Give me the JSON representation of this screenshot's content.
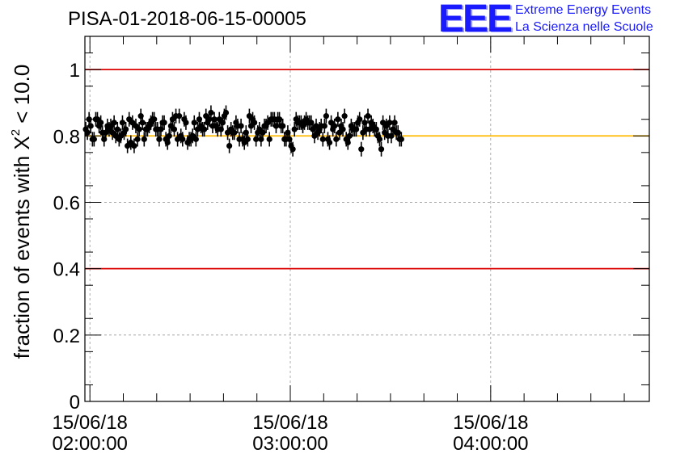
{
  "chart_data": {
    "type": "scatter",
    "title": "PISA-01-2018-06-15-00005",
    "ylabel_prefix": "fraction of events with ",
    "ylabel_chi": "X",
    "ylabel_sup": "2",
    "ylabel_suffix": " < 10.0",
    "xlabel": "",
    "ylim": [
      0,
      1.1
    ],
    "yticks": [
      0,
      0.2,
      0.4,
      0.6,
      0.8,
      1
    ],
    "ytick_labels": [
      "0",
      "0.2",
      "0.4",
      "0.6",
      "0.8",
      "1"
    ],
    "xlim": [
      "15/06/18 01:58:30",
      "15/06/18 04:47:30"
    ],
    "xticks": [
      {
        "date": "15/06/18",
        "time": "02:00:00"
      },
      {
        "date": "15/06/18",
        "time": "03:00:00"
      },
      {
        "date": "15/06/18",
        "time": "04:00:00"
      }
    ],
    "grid": true,
    "reference_lines": [
      {
        "y": 1.0,
        "color": "#dd0000"
      },
      {
        "y": 0.4,
        "color": "#dd0000"
      },
      {
        "y": 0.8,
        "color": "#ffbb00"
      }
    ],
    "series": [
      {
        "color": "#000000",
        "x_start": "15/06/18 01:58:45",
        "x_step_seconds": 30,
        "y_error": 0.022,
        "y": [
          0.82,
          0.81,
          0.85,
          0.83,
          0.79,
          0.79,
          0.85,
          0.85,
          0.83,
          0.84,
          0.81,
          0.79,
          0.81,
          0.83,
          0.82,
          0.83,
          0.81,
          0.84,
          0.8,
          0.82,
          0.79,
          0.8,
          0.84,
          0.81,
          0.82,
          0.77,
          0.85,
          0.78,
          0.84,
          0.77,
          0.83,
          0.79,
          0.82,
          0.86,
          0.84,
          0.79,
          0.82,
          0.82,
          0.83,
          0.84,
          0.85,
          0.85,
          0.82,
          0.82,
          0.79,
          0.82,
          0.84,
          0.84,
          0.79,
          0.78,
          0.8,
          0.83,
          0.85,
          0.82,
          0.86,
          0.79,
          0.86,
          0.8,
          0.79,
          0.85,
          0.84,
          0.78,
          0.79,
          0.79,
          0.8,
          0.84,
          0.79,
          0.82,
          0.85,
          0.83,
          0.82,
          0.82,
          0.86,
          0.84,
          0.85,
          0.87,
          0.83,
          0.85,
          0.83,
          0.82,
          0.85,
          0.82,
          0.84,
          0.86,
          0.87,
          0.81,
          0.77,
          0.82,
          0.81,
          0.81,
          0.84,
          0.83,
          0.79,
          0.83,
          0.79,
          0.78,
          0.81,
          0.79,
          0.86,
          0.83,
          0.85,
          0.84,
          0.79,
          0.81,
          0.82,
          0.79,
          0.81,
          0.83,
          0.83,
          0.84,
          0.79,
          0.85,
          0.85,
          0.85,
          0.83,
          0.85,
          0.85,
          0.83,
          0.83,
          0.79,
          0.79,
          0.81,
          0.79,
          0.77,
          0.76,
          0.82,
          0.85,
          0.84,
          0.84,
          0.84,
          0.83,
          0.84,
          0.85,
          0.84,
          0.84,
          0.84,
          0.82,
          0.8,
          0.83,
          0.81,
          0.82,
          0.83,
          0.79,
          0.83,
          0.86,
          0.79,
          0.78,
          0.84,
          0.82,
          0.83,
          0.79,
          0.85,
          0.81,
          0.83,
          0.82,
          0.86,
          0.79,
          0.78,
          0.8,
          0.83,
          0.82,
          0.82,
          0.82,
          0.84,
          0.85,
          0.76,
          0.81,
          0.84,
          0.82,
          0.86,
          0.82,
          0.84,
          0.83,
          0.82,
          0.82,
          0.8,
          0.79,
          0.76,
          0.84,
          0.81,
          0.83,
          0.8,
          0.84,
          0.8,
          0.82,
          0.84,
          0.81,
          0.81,
          0.79,
          0.79
        ]
      }
    ]
  },
  "logo": {
    "mark": "EEE",
    "line1": "Extreme Energy Events",
    "line2": "La Scienza nelle Scuole"
  }
}
